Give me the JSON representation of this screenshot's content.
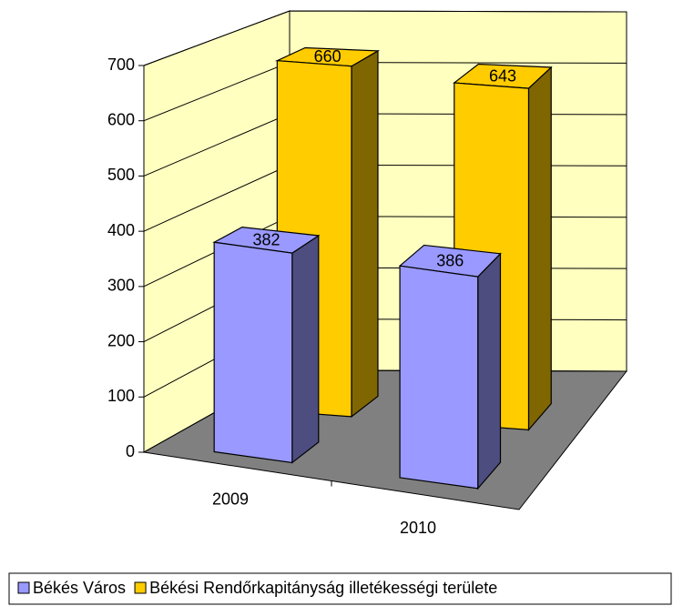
{
  "chart_data": {
    "type": "bar3d",
    "categories": [
      "2009",
      "2010"
    ],
    "series": [
      {
        "name": "Békés Város",
        "color": "#9999ff",
        "values": [
          382,
          386
        ]
      },
      {
        "name": "Békési Rendőrkapitányság illetékességi területe",
        "color": "#ffcc00",
        "values": [
          660,
          643
        ]
      }
    ],
    "ylim": [
      0,
      700
    ],
    "yticks": [
      0,
      100,
      200,
      300,
      400,
      500,
      600,
      700
    ],
    "grid": true,
    "legend": "bottom"
  }
}
